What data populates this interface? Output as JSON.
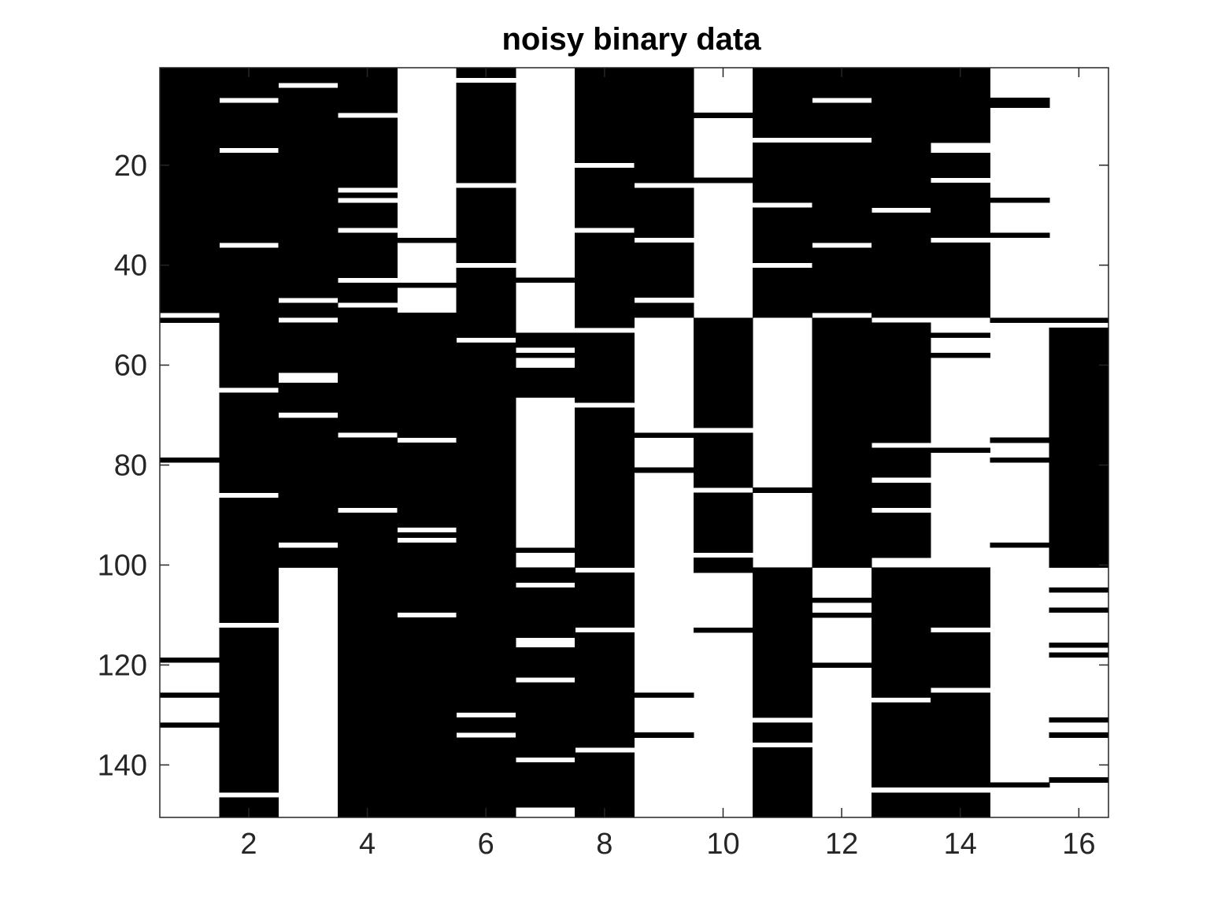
{
  "chart_data": {
    "type": "heatmap",
    "title": "noisy binary data",
    "xlabel": "",
    "ylabel": "",
    "xlim": [
      0.5,
      16.5
    ],
    "ylim": [
      0.5,
      150.5
    ],
    "y_direction": "reverse",
    "grid": false,
    "legend": "none",
    "colors": {
      "one": "#000000",
      "zero": "#ffffff",
      "axis": "#262626"
    },
    "x_ticks": [
      2,
      4,
      6,
      8,
      10,
      12,
      14,
      16
    ],
    "y_ticks": [
      20,
      40,
      60,
      80,
      100,
      120,
      140
    ],
    "rows": 150,
    "columns": [
      {
        "col": 1,
        "black_runs": [
          [
            1,
            49
          ],
          [
            51,
            51
          ],
          [
            79,
            79
          ],
          [
            119,
            119
          ],
          [
            126,
            126
          ],
          [
            132,
            132
          ]
        ]
      },
      {
        "col": 2,
        "black_runs": [
          [
            1,
            6
          ],
          [
            8,
            16
          ],
          [
            18,
            35
          ],
          [
            37,
            64
          ],
          [
            66,
            85
          ],
          [
            87,
            111
          ],
          [
            113,
            145
          ],
          [
            147,
            150
          ]
        ]
      },
      {
        "col": 3,
        "black_runs": [
          [
            1,
            3
          ],
          [
            5,
            46
          ],
          [
            48,
            50
          ],
          [
            52,
            61
          ],
          [
            64,
            69
          ],
          [
            71,
            95
          ],
          [
            97,
            100
          ]
        ]
      },
      {
        "col": 4,
        "black_runs": [
          [
            1,
            9
          ],
          [
            11,
            24
          ],
          [
            26,
            26
          ],
          [
            28,
            32
          ],
          [
            34,
            42
          ],
          [
            44,
            47
          ],
          [
            49,
            73
          ],
          [
            75,
            88
          ],
          [
            90,
            150
          ]
        ]
      },
      {
        "col": 5,
        "black_runs": [
          [
            35,
            35
          ],
          [
            44,
            44
          ],
          [
            50,
            74
          ],
          [
            76,
            92
          ],
          [
            94,
            94
          ],
          [
            96,
            109
          ],
          [
            111,
            150
          ]
        ]
      },
      {
        "col": 6,
        "black_runs": [
          [
            1,
            2
          ],
          [
            4,
            23
          ],
          [
            25,
            39
          ],
          [
            41,
            54
          ],
          [
            56,
            129
          ],
          [
            131,
            133
          ],
          [
            135,
            150
          ]
        ]
      },
      {
        "col": 7,
        "black_runs": [
          [
            43,
            43
          ],
          [
            54,
            56
          ],
          [
            58,
            58
          ],
          [
            61,
            66
          ],
          [
            97,
            97
          ],
          [
            101,
            103
          ],
          [
            105,
            114
          ],
          [
            117,
            122
          ],
          [
            124,
            138
          ],
          [
            140,
            148
          ]
        ]
      },
      {
        "col": 8,
        "black_runs": [
          [
            1,
            19
          ],
          [
            21,
            32
          ],
          [
            34,
            52
          ],
          [
            54,
            67
          ],
          [
            69,
            100
          ],
          [
            102,
            112
          ],
          [
            114,
            136
          ],
          [
            138,
            150
          ]
        ]
      },
      {
        "col": 9,
        "black_runs": [
          [
            1,
            23
          ],
          [
            25,
            34
          ],
          [
            36,
            46
          ],
          [
            48,
            50
          ],
          [
            74,
            74
          ],
          [
            81,
            81
          ],
          [
            126,
            126
          ],
          [
            134,
            134
          ]
        ]
      },
      {
        "col": 10,
        "black_runs": [
          [
            10,
            10
          ],
          [
            23,
            23
          ],
          [
            51,
            72
          ],
          [
            74,
            84
          ],
          [
            86,
            97
          ],
          [
            99,
            101
          ],
          [
            113,
            113
          ]
        ]
      },
      {
        "col": 11,
        "black_runs": [
          [
            1,
            14
          ],
          [
            16,
            27
          ],
          [
            29,
            39
          ],
          [
            41,
            50
          ],
          [
            85,
            85
          ],
          [
            101,
            130
          ],
          [
            132,
            135
          ],
          [
            137,
            150
          ]
        ]
      },
      {
        "col": 12,
        "black_runs": [
          [
            1,
            6
          ],
          [
            8,
            14
          ],
          [
            16,
            35
          ],
          [
            37,
            49
          ],
          [
            51,
            100
          ],
          [
            107,
            107
          ],
          [
            110,
            110
          ],
          [
            120,
            120
          ]
        ]
      },
      {
        "col": 13,
        "black_runs": [
          [
            1,
            28
          ],
          [
            30,
            50
          ],
          [
            52,
            75
          ],
          [
            77,
            82
          ],
          [
            84,
            88
          ],
          [
            90,
            98
          ],
          [
            101,
            126
          ],
          [
            128,
            144
          ],
          [
            146,
            150
          ]
        ]
      },
      {
        "col": 14,
        "black_runs": [
          [
            1,
            15
          ],
          [
            18,
            22
          ],
          [
            24,
            34
          ],
          [
            36,
            50
          ],
          [
            54,
            54
          ],
          [
            58,
            58
          ],
          [
            77,
            77
          ],
          [
            101,
            112
          ],
          [
            114,
            124
          ],
          [
            126,
            144
          ],
          [
            146,
            150
          ]
        ]
      },
      {
        "col": 15,
        "black_runs": [
          [
            7,
            8
          ],
          [
            27,
            27
          ],
          [
            34,
            34
          ],
          [
            51,
            51
          ],
          [
            75,
            75
          ],
          [
            79,
            79
          ],
          [
            96,
            96
          ],
          [
            144,
            144
          ]
        ]
      },
      {
        "col": 16,
        "black_runs": [
          [
            51,
            51
          ],
          [
            53,
            100
          ],
          [
            105,
            105
          ],
          [
            109,
            109
          ],
          [
            116,
            116
          ],
          [
            118,
            118
          ],
          [
            131,
            131
          ],
          [
            134,
            134
          ],
          [
            143,
            143
          ]
        ]
      }
    ]
  }
}
